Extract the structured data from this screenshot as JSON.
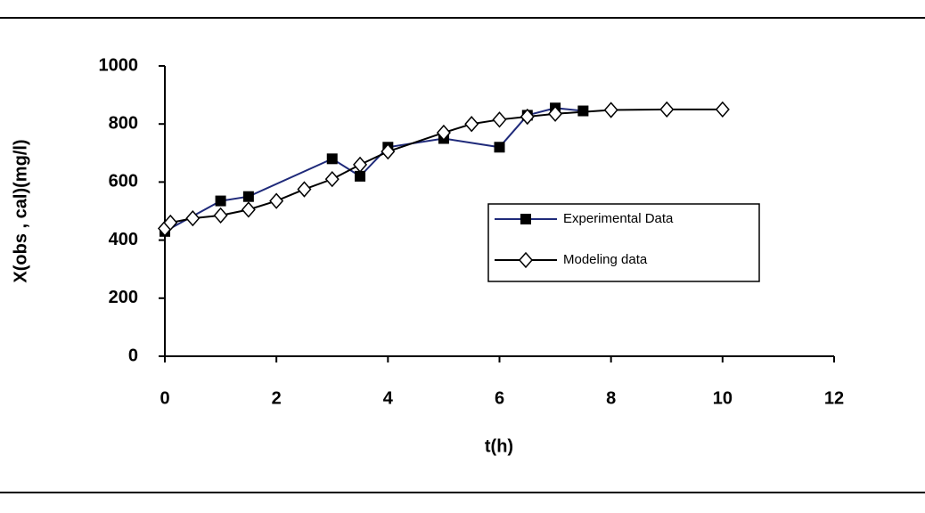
{
  "chart_data": {
    "type": "line",
    "x_label": "t(h)",
    "y_label": "X(obs , cal)(mg/l)",
    "xlim": [
      0,
      12
    ],
    "xticks": [
      0,
      2,
      4,
      6,
      8,
      10,
      12
    ],
    "ylim": [
      0,
      1000
    ],
    "yticks": [
      0,
      200,
      400,
      600,
      800,
      1000
    ],
    "grid": false,
    "legend_position": "right",
    "series": [
      {
        "name": "Experimental Data",
        "color": "#1f2a7a",
        "marker": "square",
        "x": [
          0,
          1,
          1.5,
          3,
          3.5,
          4,
          5,
          6,
          6.5,
          7,
          7.5
        ],
        "values": [
          430,
          535,
          550,
          680,
          620,
          720,
          750,
          720,
          830,
          855,
          845
        ]
      },
      {
        "name": "Modeling data",
        "color": "#000000",
        "marker": "diamond",
        "x": [
          0,
          0.1,
          0.5,
          1,
          1.5,
          2,
          2.5,
          3,
          3.5,
          4,
          5,
          5.5,
          6,
          6.5,
          7,
          8,
          9,
          10
        ],
        "values": [
          440,
          460,
          475,
          485,
          505,
          535,
          575,
          610,
          660,
          705,
          770,
          800,
          815,
          825,
          835,
          848,
          850,
          850
        ]
      }
    ]
  }
}
